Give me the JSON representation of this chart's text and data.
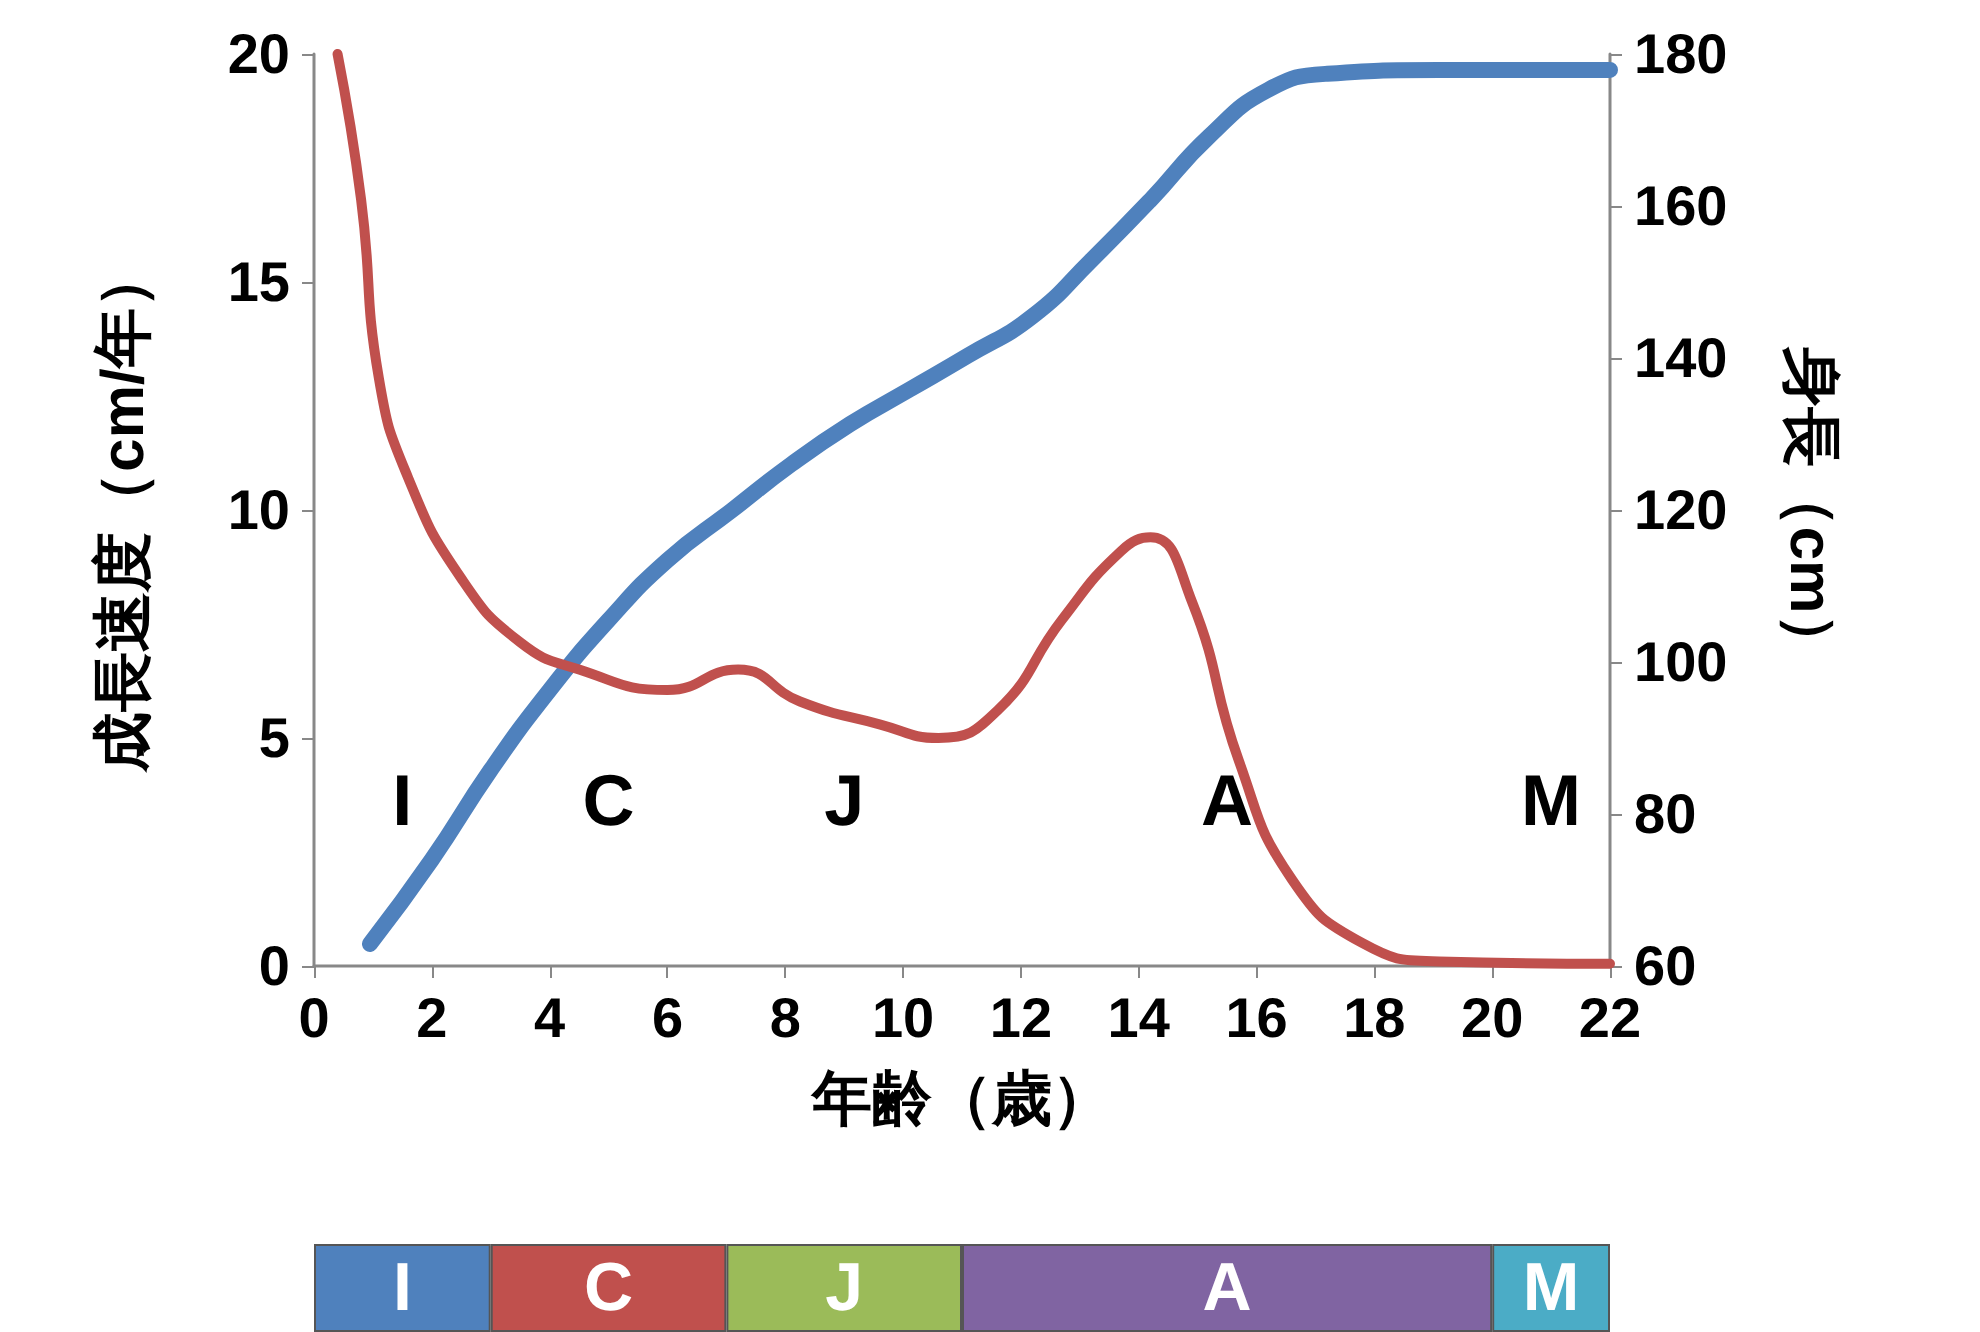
{
  "chart_data": [
    {
      "type": "line",
      "xlabel": "年齢（歳）",
      "ylabel": "成長速度（cm/年）",
      "y2label": "身長（cm）",
      "xlim": [
        0,
        22
      ],
      "xticks": [
        0,
        2,
        4,
        6,
        8,
        10,
        12,
        14,
        16,
        18,
        20,
        22
      ],
      "ylim": [
        0,
        20
      ],
      "yticks": [
        0,
        5,
        10,
        15,
        20
      ],
      "y2lim": [
        60,
        180
      ],
      "y2ticks": [
        60,
        80,
        100,
        120,
        140,
        160,
        180
      ],
      "grid": false,
      "marker": "none",
      "line_style": "solid",
      "series": [
        {
          "color": "#c0504d",
          "x": [
            0.4,
            0.8,
            1.1,
            1.6,
            2.5,
            3.5,
            4.5,
            6.0,
            7.2,
            8.25,
            9.6,
            10.6,
            11.6,
            12.7,
            13.7,
            14.2,
            14.9,
            15.7,
            16.6,
            17.8,
            19.1,
            22
          ],
          "values": [
            20,
            16.8,
            12.9,
            10.7,
            8.5,
            7.1,
            6.5,
            6.05,
            6.5,
            5.8,
            5.3,
            5.0,
            5.6,
            7.6,
            9.1,
            9.4,
            8.0,
            4.5,
            1.9,
            0.5,
            0.1,
            0.05
          ]
        },
        {
          "color": "#4f81bd",
          "axis": "y2",
          "x": [
            0.95,
            2.0,
            3.0,
            4.0,
            5.0,
            6.0,
            7.1,
            8.1,
            9.1,
            10.1,
            11.1,
            12.2,
            13.2,
            14.2,
            15.2,
            16.2,
            17.2,
            19.1,
            22
          ],
          "values": [
            62.9,
            74,
            85.8,
            96.3,
            105.5,
            113.4,
            120,
            126,
            131.3,
            135.8,
            140.3,
            145.5,
            152.9,
            160.8,
            169.2,
            175.3,
            177.4,
            177.9,
            177.9
          ]
        }
      ],
      "annotations": [
        "I",
        "C",
        "J",
        "A",
        "M"
      ]
    },
    {
      "type": "bar",
      "orientation": "horizontal",
      "stacked": true,
      "categories": [
        null
      ],
      "xlim": [
        0,
        22
      ],
      "tick_labels": false,
      "series": [
        {
          "name": "I",
          "color": "#4f81bd",
          "values": [
            3
          ]
        },
        {
          "name": "C",
          "color": "#c0504d",
          "values": [
            4
          ]
        },
        {
          "name": "J",
          "color": "#9bbb59",
          "values": [
            4
          ]
        },
        {
          "name": "A",
          "color": "#8064a2",
          "values": [
            9
          ]
        },
        {
          "name": "M",
          "color": "#4bacc6",
          "values": [
            2
          ]
        }
      ]
    }
  ]
}
